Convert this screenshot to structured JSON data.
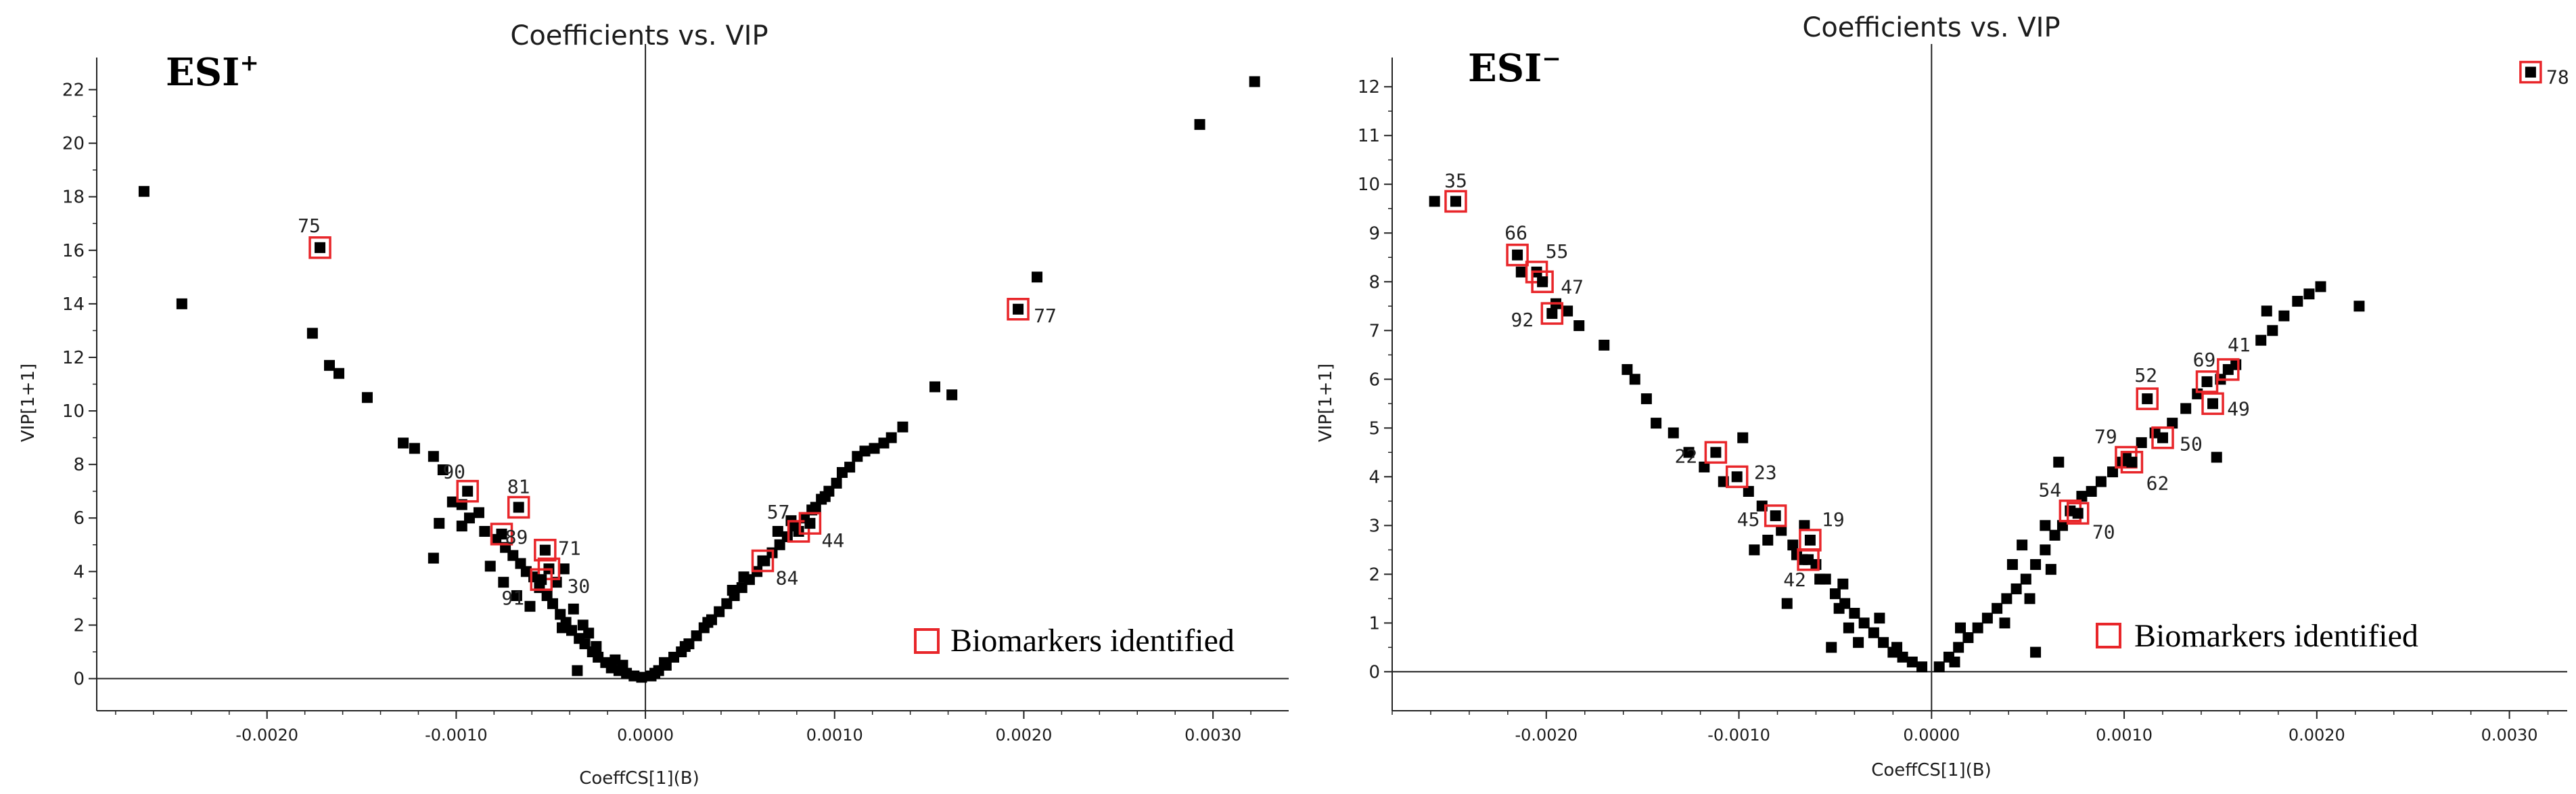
{
  "legend_label": "Biomarkers identified",
  "colors": {
    "point": "#000000",
    "highlight": "#e8262a",
    "axis": "#222222"
  },
  "chart_data": [
    {
      "type": "scatter",
      "title": "Coefficients vs. VIP",
      "ion_mode": "ESI",
      "ion_sign": "+",
      "xlabel": "CoeffCS[1](B)",
      "ylabel": "VIP[1+1]",
      "xlim": [
        -0.0029,
        0.0034
      ],
      "ylim": [
        -1.2,
        23.2
      ],
      "xticks": [
        -0.002,
        -0.001,
        0.0,
        0.001,
        0.002,
        0.003
      ],
      "xtick_labels": [
        "-0.0020",
        "-0.0010",
        "0.0000",
        "0.0010",
        "0.0020",
        "0.0030"
      ],
      "yticks": [
        0,
        2,
        4,
        6,
        8,
        10,
        12,
        14,
        16,
        18,
        20,
        22
      ],
      "ytick_labels": [
        "0",
        "2",
        "4",
        "6",
        "8",
        "10",
        "12",
        "14",
        "16",
        "18",
        "20",
        "22"
      ],
      "legend": "bottom-right",
      "highlighted": [
        {
          "id": "75",
          "x": -0.00172,
          "y": 16.1
        },
        {
          "id": "90",
          "x": -0.00094,
          "y": 7.0
        },
        {
          "id": "81",
          "x": -0.00067,
          "y": 6.4
        },
        {
          "id": "89",
          "x": -0.00076,
          "y": 5.4
        },
        {
          "id": "71",
          "x": -0.00053,
          "y": 4.8
        },
        {
          "id": "30",
          "x": -0.00051,
          "y": 4.1
        },
        {
          "id": "91",
          "x": -0.00055,
          "y": 3.7
        },
        {
          "id": "77",
          "x": 0.00197,
          "y": 13.8
        },
        {
          "id": "57",
          "x": 0.00081,
          "y": 5.5
        },
        {
          "id": "44",
          "x": 0.00087,
          "y": 5.8
        },
        {
          "id": "84",
          "x": 0.00062,
          "y": 4.4
        }
      ],
      "points": [
        [
          -0.00265,
          18.2
        ],
        [
          -0.00245,
          14.0
        ],
        [
          -0.00176,
          12.9
        ],
        [
          -0.00167,
          11.7
        ],
        [
          -0.00162,
          11.4
        ],
        [
          -0.00147,
          10.5
        ],
        [
          -0.00128,
          8.8
        ],
        [
          -0.00122,
          8.6
        ],
        [
          -0.00112,
          8.3
        ],
        [
          -0.00107,
          7.8
        ],
        [
          -0.00102,
          6.6
        ],
        [
          -0.00097,
          6.5
        ],
        [
          -0.00109,
          5.8
        ],
        [
          -0.00093,
          6.0
        ],
        [
          -0.00088,
          6.2
        ],
        [
          -0.00085,
          5.5
        ],
        [
          -0.00079,
          5.2
        ],
        [
          -0.00074,
          4.9
        ],
        [
          -0.0007,
          4.6
        ],
        [
          -0.00066,
          4.3
        ],
        [
          -0.00063,
          4.0
        ],
        [
          -0.00059,
          3.8
        ],
        [
          -0.00056,
          3.4
        ],
        [
          -0.00052,
          3.1
        ],
        [
          -0.00049,
          2.8
        ],
        [
          -0.00045,
          2.4
        ],
        [
          -0.00042,
          2.1
        ],
        [
          -0.00039,
          1.8
        ],
        [
          -0.00035,
          1.5
        ],
        [
          -0.00032,
          1.3
        ],
        [
          -0.00028,
          1.0
        ],
        [
          -0.00025,
          0.8
        ],
        [
          -0.00021,
          0.6
        ],
        [
          -0.00018,
          0.4
        ],
        [
          -0.00014,
          0.3
        ],
        [
          -0.0001,
          0.2
        ],
        [
          -6e-05,
          0.1
        ],
        [
          -2e-05,
          0.05
        ],
        [
          -0.00112,
          4.5
        ],
        [
          -0.00097,
          5.7
        ],
        [
          -0.00082,
          4.2
        ],
        [
          -0.00075,
          3.6
        ],
        [
          -0.00068,
          3.1
        ],
        [
          -0.00061,
          2.7
        ],
        [
          -0.00047,
          3.6
        ],
        [
          -0.00043,
          4.1
        ],
        [
          -0.00038,
          2.6
        ],
        [
          -0.0003,
          1.7
        ],
        [
          -0.00036,
          0.3
        ],
        [
          -0.00026,
          1.2
        ],
        [
          -0.00016,
          0.7
        ],
        [
          -0.00012,
          0.5
        ],
        [
          -0.00044,
          1.9
        ],
        [
          -0.00033,
          2.0
        ],
        [
          3e-05,
          0.1
        ],
        [
          7e-05,
          0.3
        ],
        [
          0.00011,
          0.5
        ],
        [
          0.00015,
          0.8
        ],
        [
          0.00019,
          1.0
        ],
        [
          0.00023,
          1.3
        ],
        [
          0.00027,
          1.6
        ],
        [
          0.00031,
          1.9
        ],
        [
          0.00035,
          2.2
        ],
        [
          0.00039,
          2.5
        ],
        [
          0.00043,
          2.8
        ],
        [
          0.00047,
          3.1
        ],
        [
          0.00051,
          3.4
        ],
        [
          0.00055,
          3.7
        ],
        [
          0.00059,
          4.0
        ],
        [
          0.00063,
          4.4
        ],
        [
          0.00067,
          4.7
        ],
        [
          0.00071,
          5.0
        ],
        [
          0.00075,
          5.3
        ],
        [
          0.00079,
          5.7
        ],
        [
          0.00084,
          6.0
        ],
        [
          0.00088,
          6.3
        ],
        [
          0.00093,
          6.7
        ],
        [
          0.00097,
          7.0
        ],
        [
          0.00101,
          7.3
        ],
        [
          0.00104,
          7.7
        ],
        [
          0.00108,
          7.9
        ],
        [
          0.00112,
          8.3
        ],
        [
          0.00116,
          8.5
        ],
        [
          0.00121,
          8.6
        ],
        [
          0.00126,
          8.8
        ],
        [
          0.0013,
          9.0
        ],
        [
          0.00136,
          9.4
        ],
        [
          0.00153,
          10.9
        ],
        [
          0.00162,
          10.6
        ],
        [
          0.00207,
          15.0
        ],
        [
          0.00293,
          20.7
        ],
        [
          0.00322,
          22.3
        ],
        [
          0.0009,
          6.4
        ],
        [
          0.00095,
          6.8
        ],
        [
          0.00077,
          5.9
        ],
        [
          0.0007,
          5.5
        ],
        [
          0.00052,
          3.8
        ],
        [
          0.00046,
          3.3
        ],
        [
          0.00033,
          2.1
        ],
        [
          0.00021,
          1.2
        ],
        [
          0.0001,
          0.6
        ],
        [
          5e-05,
          0.2
        ]
      ]
    },
    {
      "type": "scatter",
      "title": "Coefficients vs. VIP",
      "ion_mode": "ESI",
      "ion_sign": "−",
      "xlabel": "CoeffCS[1](B)",
      "ylabel": "VIP[1+1]",
      "xlim": [
        -0.0028,
        0.0033
      ],
      "ylim": [
        -0.8,
        12.6
      ],
      "xticks": [
        -0.002,
        -0.001,
        0.0,
        0.001,
        0.002,
        0.003
      ],
      "xtick_labels": [
        "-0.0020",
        "-0.0010",
        "0.0000",
        "0.0010",
        "0.0020",
        "0.0030"
      ],
      "yticks": [
        0,
        1,
        2,
        3,
        4,
        5,
        6,
        7,
        8,
        9,
        10,
        11,
        12
      ],
      "ytick_labels": [
        "0",
        "1",
        "2",
        "3",
        "4",
        "5",
        "6",
        "7",
        "8",
        "9",
        "10",
        "11",
        "12"
      ],
      "legend": "bottom-right",
      "highlighted": [
        {
          "id": "35",
          "x": -0.00247,
          "y": 9.65
        },
        {
          "id": "66",
          "x": -0.00215,
          "y": 8.55
        },
        {
          "id": "55",
          "x": -0.00205,
          "y": 8.2
        },
        {
          "id": "47",
          "x": -0.00202,
          "y": 8.0
        },
        {
          "id": "92",
          "x": -0.00197,
          "y": 7.35
        },
        {
          "id": "22",
          "x": -0.00112,
          "y": 4.5
        },
        {
          "id": "23",
          "x": -0.00101,
          "y": 4.0
        },
        {
          "id": "45",
          "x": -0.00081,
          "y": 3.2
        },
        {
          "id": "19",
          "x": -0.00063,
          "y": 2.7
        },
        {
          "id": "42",
          "x": -0.00064,
          "y": 2.3
        },
        {
          "id": "78",
          "x": 0.00311,
          "y": 12.3
        },
        {
          "id": "52",
          "x": 0.00112,
          "y": 5.6
        },
        {
          "id": "69",
          "x": 0.00143,
          "y": 5.95
        },
        {
          "id": "41",
          "x": 0.00154,
          "y": 6.2
        },
        {
          "id": "49",
          "x": 0.00146,
          "y": 5.5
        },
        {
          "id": "50",
          "x": 0.0012,
          "y": 4.8
        },
        {
          "id": "79",
          "x": 0.00101,
          "y": 4.4
        },
        {
          "id": "62",
          "x": 0.00104,
          "y": 4.3
        },
        {
          "id": "54",
          "x": 0.00072,
          "y": 3.3
        },
        {
          "id": "70",
          "x": 0.00076,
          "y": 3.25
        }
      ],
      "points": [
        [
          -0.00258,
          9.65
        ],
        [
          -0.00213,
          8.2
        ],
        [
          -0.00195,
          7.55
        ],
        [
          -0.00189,
          7.4
        ],
        [
          -0.00183,
          7.1
        ],
        [
          -0.0017,
          6.7
        ],
        [
          -0.00158,
          6.2
        ],
        [
          -0.00154,
          6.0
        ],
        [
          -0.00148,
          5.6
        ],
        [
          -0.00143,
          5.1
        ],
        [
          -0.00134,
          4.9
        ],
        [
          -0.00126,
          4.5
        ],
        [
          -0.00118,
          4.2
        ],
        [
          -0.00108,
          3.9
        ],
        [
          -0.00095,
          3.7
        ],
        [
          -0.00088,
          3.4
        ],
        [
          -0.00078,
          2.9
        ],
        [
          -0.00072,
          2.6
        ],
        [
          -0.00067,
          2.3
        ],
        [
          -0.0006,
          2.2
        ],
        [
          -0.00055,
          1.9
        ],
        [
          -0.0005,
          1.6
        ],
        [
          -0.00045,
          1.4
        ],
        [
          -0.0004,
          1.2
        ],
        [
          -0.00035,
          1.0
        ],
        [
          -0.0003,
          0.8
        ],
        [
          -0.00025,
          0.6
        ],
        [
          -0.0002,
          0.4
        ],
        [
          -0.00015,
          0.3
        ],
        [
          -0.0001,
          0.2
        ],
        [
          -5e-05,
          0.1
        ],
        [
          -0.0007,
          2.4
        ],
        [
          -0.00085,
          2.7
        ],
        [
          -0.00092,
          2.5
        ],
        [
          -0.00075,
          1.4
        ],
        [
          -0.00058,
          1.9
        ],
        [
          -0.00048,
          1.3
        ],
        [
          -0.00052,
          0.5
        ],
        [
          -0.00043,
          0.9
        ],
        [
          -0.00038,
          0.6
        ],
        [
          -0.00027,
          1.1
        ],
        [
          -0.00018,
          0.5
        ],
        [
          -0.00098,
          4.8
        ],
        [
          -0.00066,
          3.0
        ],
        [
          -0.00046,
          1.8
        ],
        [
          4e-05,
          0.1
        ],
        [
          9e-05,
          0.3
        ],
        [
          0.00014,
          0.5
        ],
        [
          0.00019,
          0.7
        ],
        [
          0.00024,
          0.9
        ],
        [
          0.00029,
          1.1
        ],
        [
          0.00034,
          1.3
        ],
        [
          0.00039,
          1.5
        ],
        [
          0.00044,
          1.7
        ],
        [
          0.00049,
          1.9
        ],
        [
          0.00054,
          2.2
        ],
        [
          0.00059,
          2.5
        ],
        [
          0.00064,
          2.8
        ],
        [
          0.00068,
          3.0
        ],
        [
          0.00078,
          3.6
        ],
        [
          0.00083,
          3.7
        ],
        [
          0.00088,
          3.9
        ],
        [
          0.00094,
          4.1
        ],
        [
          0.00099,
          4.3
        ],
        [
          0.00109,
          4.7
        ],
        [
          0.00116,
          4.9
        ],
        [
          0.00125,
          5.1
        ],
        [
          0.00132,
          5.4
        ],
        [
          0.00138,
          5.7
        ],
        [
          0.0015,
          6.0
        ],
        [
          0.00158,
          6.3
        ],
        [
          0.00171,
          6.8
        ],
        [
          0.00177,
          7.0
        ],
        [
          0.00183,
          7.3
        ],
        [
          0.0019,
          7.6
        ],
        [
          0.00196,
          7.75
        ],
        [
          0.00202,
          7.9
        ],
        [
          0.00222,
          7.5
        ],
        [
          0.00174,
          7.4
        ],
        [
          0.00148,
          4.4
        ],
        [
          0.00054,
          0.4
        ],
        [
          0.00038,
          1.0
        ],
        [
          0.00051,
          1.5
        ],
        [
          0.00062,
          2.1
        ],
        [
          0.00066,
          4.3
        ],
        [
          0.00059,
          3.0
        ],
        [
          0.00015,
          0.9
        ],
        [
          0.00012,
          0.2
        ],
        [
          0.00042,
          2.2
        ],
        [
          0.00047,
          2.6
        ]
      ]
    }
  ]
}
